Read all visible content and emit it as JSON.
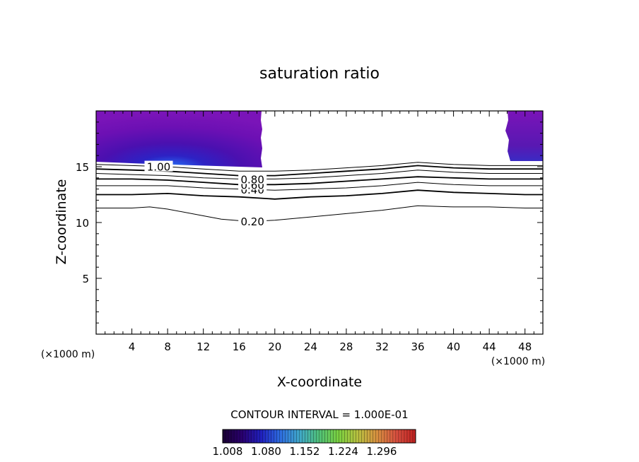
{
  "chart_data": {
    "type": "contour",
    "title": "saturation ratio",
    "xlabel": "X-coordinate",
    "ylabel": "Z-coordinate",
    "x_unit_label": "(×1000 m)",
    "z_unit_label": "(×1000 m)",
    "xlim": [
      0,
      50
    ],
    "ylim": [
      0,
      20
    ],
    "x_ticks": [
      4,
      8,
      12,
      16,
      20,
      24,
      28,
      32,
      36,
      40,
      44,
      48
    ],
    "y_ticks": [
      5,
      10,
      15
    ],
    "contour_interval_text": "CONTOUR INTERVAL = 1.000E-01",
    "contour_lines": [
      {
        "label": "0.20",
        "points": [
          [
            0,
            11.3
          ],
          [
            4,
            11.3
          ],
          [
            6,
            11.4
          ],
          [
            8,
            11.2
          ],
          [
            12,
            10.6
          ],
          [
            14,
            10.3
          ],
          [
            17,
            10.1
          ],
          [
            20,
            10.2
          ],
          [
            24,
            10.5
          ],
          [
            28,
            10.8
          ],
          [
            32,
            11.1
          ],
          [
            36,
            11.5
          ],
          [
            40,
            11.4
          ],
          [
            44,
            11.4
          ],
          [
            48,
            11.3
          ],
          [
            50,
            11.3
          ]
        ]
      },
      {
        "label": "",
        "points": [
          [
            0,
            12.5
          ],
          [
            4,
            12.5
          ],
          [
            8,
            12.6
          ],
          [
            12,
            12.4
          ],
          [
            16,
            12.3
          ],
          [
            20,
            12.1
          ],
          [
            24,
            12.3
          ],
          [
            28,
            12.4
          ],
          [
            32,
            12.6
          ],
          [
            36,
            12.9
          ],
          [
            40,
            12.7
          ],
          [
            44,
            12.6
          ],
          [
            48,
            12.5
          ],
          [
            50,
            12.5
          ]
        ]
      },
      {
        "label": "0.40",
        "points": [
          [
            0,
            13.3
          ],
          [
            4,
            13.3
          ],
          [
            8,
            13.3
          ],
          [
            12,
            13.1
          ],
          [
            16,
            13.0
          ],
          [
            20,
            12.9
          ],
          [
            24,
            13.0
          ],
          [
            28,
            13.1
          ],
          [
            32,
            13.3
          ],
          [
            36,
            13.6
          ],
          [
            40,
            13.4
          ],
          [
            44,
            13.3
          ],
          [
            48,
            13.3
          ],
          [
            50,
            13.3
          ]
        ]
      },
      {
        "label": "0.60",
        "points": [
          [
            0,
            13.9
          ],
          [
            4,
            13.9
          ],
          [
            8,
            13.8
          ],
          [
            12,
            13.6
          ],
          [
            16,
            13.4
          ],
          [
            20,
            13.4
          ],
          [
            24,
            13.5
          ],
          [
            28,
            13.7
          ],
          [
            32,
            13.9
          ],
          [
            36,
            14.1
          ],
          [
            40,
            14.0
          ],
          [
            44,
            13.9
          ],
          [
            48,
            13.9
          ],
          [
            50,
            13.9
          ]
        ]
      },
      {
        "label": "0.80",
        "points": [
          [
            0,
            14.4
          ],
          [
            4,
            14.3
          ],
          [
            8,
            14.2
          ],
          [
            12,
            14.0
          ],
          [
            16,
            13.9
          ],
          [
            20,
            13.9
          ],
          [
            24,
            14.0
          ],
          [
            28,
            14.2
          ],
          [
            32,
            14.4
          ],
          [
            36,
            14.7
          ],
          [
            40,
            14.5
          ],
          [
            44,
            14.4
          ],
          [
            48,
            14.4
          ],
          [
            50,
            14.4
          ]
        ]
      },
      {
        "label": "",
        "points": [
          [
            0,
            14.8
          ],
          [
            4,
            14.7
          ],
          [
            8,
            14.6
          ],
          [
            12,
            14.4
          ],
          [
            16,
            14.2
          ],
          [
            20,
            14.2
          ],
          [
            24,
            14.4
          ],
          [
            28,
            14.6
          ],
          [
            32,
            14.8
          ],
          [
            36,
            15.1
          ],
          [
            40,
            14.9
          ],
          [
            44,
            14.8
          ],
          [
            48,
            14.8
          ],
          [
            50,
            14.8
          ]
        ]
      },
      {
        "label": "1.00",
        "points": [
          [
            0,
            15.2
          ],
          [
            4,
            15.1
          ],
          [
            8,
            15.0
          ],
          [
            12,
            14.8
          ],
          [
            16,
            14.6
          ],
          [
            20,
            14.6
          ],
          [
            24,
            14.7
          ],
          [
            28,
            14.9
          ],
          [
            32,
            15.1
          ],
          [
            36,
            15.4
          ],
          [
            40,
            15.2
          ],
          [
            44,
            15.1
          ],
          [
            48,
            15.1
          ],
          [
            50,
            15.1
          ]
        ]
      }
    ],
    "shaded_regions": [
      {
        "x_range": [
          0,
          18.5
        ],
        "z_bottom": 15.0,
        "z_top": 20,
        "value_min": 1.008,
        "value_max": 1.33
      },
      {
        "x_range": [
          46,
          50
        ],
        "z_bottom": 15.2,
        "z_top": 20,
        "value_min": 1.008,
        "value_max": 1.33
      }
    ],
    "colorbar": {
      "tick_labels": [
        "1.008",
        "1.080",
        "1.152",
        "1.224",
        "1.296"
      ],
      "range": [
        1.008,
        1.33
      ],
      "colors": [
        "#1a0033",
        "#2a0070",
        "#2020c0",
        "#2e6ee0",
        "#40a8c8",
        "#50c078",
        "#7ad040",
        "#b8c040",
        "#d89040",
        "#d85040",
        "#c02020"
      ]
    }
  }
}
